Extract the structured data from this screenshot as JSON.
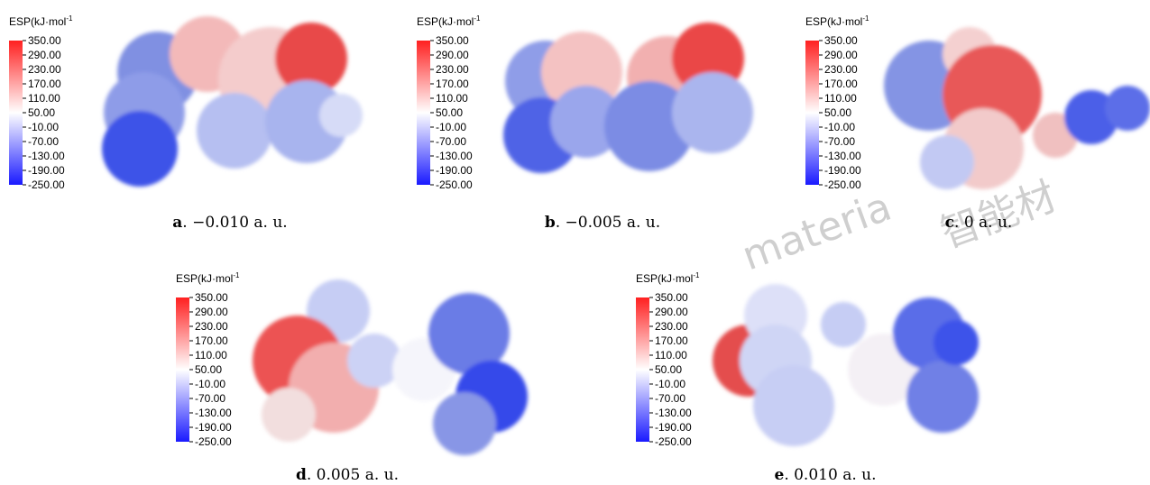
{
  "colorbar": {
    "title": "ESP(kJ·mol",
    "title_sup": "-1",
    "ticks": [
      "350.00",
      "290.00",
      "230.00",
      "170.00",
      "110.00",
      "50.00",
      "-10.00",
      "-70.00",
      "-130.00",
      "-190.00",
      "-250.00"
    ]
  },
  "panels": [
    {
      "letter": "a",
      "caption": ". −0.010 a. u."
    },
    {
      "letter": "b",
      "caption": ". −0.005 a. u."
    },
    {
      "letter": "c",
      "caption": ". 0 a. u."
    },
    {
      "letter": "d",
      "caption": ". 0.005 a. u."
    },
    {
      "letter": "e",
      "caption": ". 0.010 a. u."
    }
  ],
  "watermark": [
    "materia",
    "智能材"
  ]
}
